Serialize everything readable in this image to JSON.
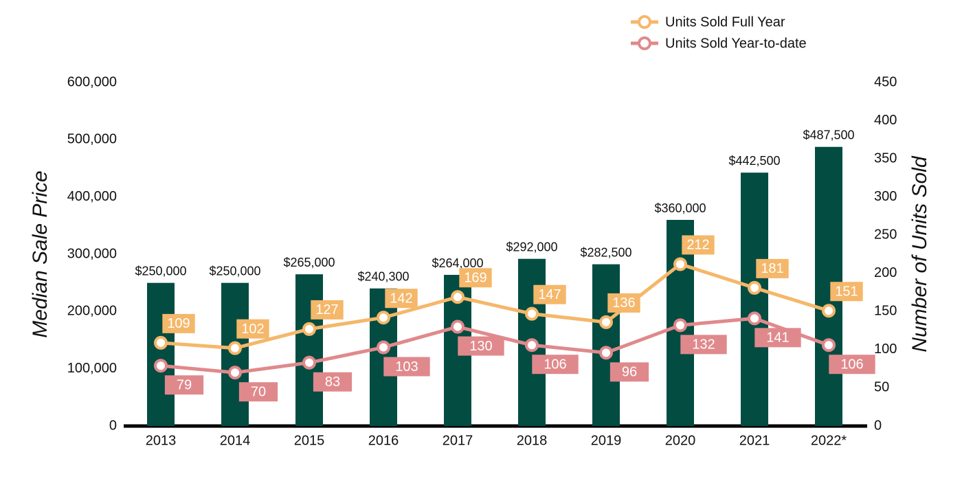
{
  "chart_data": {
    "type": "combo",
    "y_label": "Median Sale Price",
    "y2_label": "Number of Units Sold",
    "categories": [
      "2013",
      "2014",
      "2015",
      "2016",
      "2017",
      "2018",
      "2019",
      "2020",
      "2021",
      "2022*"
    ],
    "series": [
      {
        "type": "bar",
        "color": "#034c42",
        "values": [
          250000,
          250000,
          265000,
          240300,
          264000,
          292000,
          282500,
          360000,
          442500,
          487500
        ],
        "value_labels": [
          "$250,000",
          "$250,000",
          "$265,000",
          "$240,300",
          "$264,000",
          "$292,000",
          "$282,500",
          "$360,000",
          "$442,500",
          "$487,500"
        ]
      },
      {
        "type": "line",
        "name": "Units Sold Full Year",
        "color": "#f5b76a",
        "axis": "y2",
        "values": [
          109,
          102,
          127,
          142,
          169,
          147,
          136,
          212,
          181,
          151
        ]
      },
      {
        "type": "line",
        "name": "Units Sold Year-to-date",
        "color": "#e0898c",
        "axis": "y2",
        "values": [
          79,
          70,
          83,
          103,
          130,
          106,
          96,
          132,
          141,
          106
        ]
      }
    ],
    "ylim": [
      0,
      600000
    ],
    "yticks": [
      0,
      {
        "value": 100000,
        "label": "100,000"
      },
      {
        "value": 200000,
        "label": "200,000"
      },
      {
        "value": 300000,
        "label": "300,000"
      },
      {
        "value": 400000,
        "label": "400,000"
      },
      {
        "value": 500000,
        "label": "500,000"
      },
      {
        "value": 600000,
        "label": "600,000"
      }
    ],
    "y2lim": [
      0,
      450
    ],
    "y2ticks": [
      0,
      50,
      100,
      150,
      200,
      250,
      300,
      350,
      400,
      450
    ],
    "grid": false,
    "legend": "top-right"
  }
}
